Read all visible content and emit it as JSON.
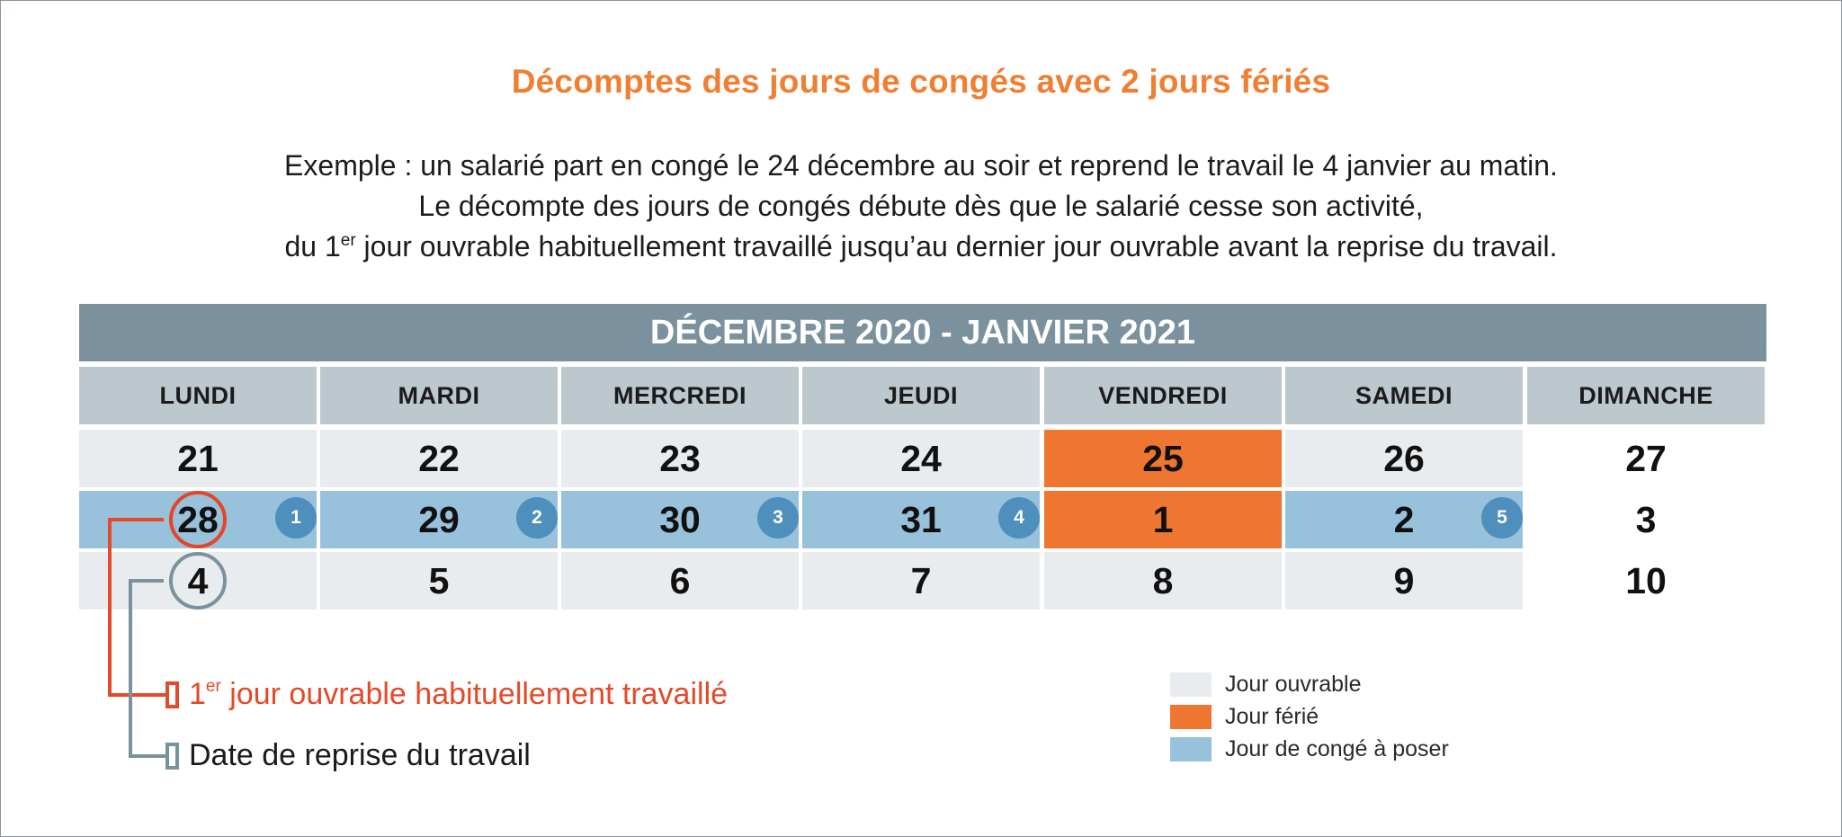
{
  "title": "Décomptes des jours de congés avec 2 jours fériés",
  "intro": {
    "line1": "Exemple : un salarié part en congé le 24 décembre au soir et reprend le travail le 4 janvier au matin.",
    "line2": "Le décompte des jours de congés débute dès que le salarié cesse son activité,",
    "line3_pre": "du 1",
    "line3_sup": "er",
    "line3_post": " jour ouvrable habituellement travaillé jusqu’au dernier jour ouvrable avant la reprise du travail."
  },
  "calendar": {
    "header": "DÉCEMBRE 2020 - JANVIER 2021",
    "days": [
      "LUNDI",
      "MARDI",
      "MERCREDI",
      "JEUDI",
      "VENDREDI",
      "SAMEDI",
      "DIMANCHE"
    ],
    "weeks": [
      [
        {
          "day": "21",
          "type": "ouvrable"
        },
        {
          "day": "22",
          "type": "ouvrable"
        },
        {
          "day": "23",
          "type": "ouvrable"
        },
        {
          "day": "24",
          "type": "ouvrable"
        },
        {
          "day": "25",
          "type": "ferie"
        },
        {
          "day": "26",
          "type": "ouvrable"
        },
        {
          "day": "27",
          "type": "plain"
        }
      ],
      [
        {
          "day": "28",
          "type": "conge",
          "badge": "1",
          "marker": "first"
        },
        {
          "day": "29",
          "type": "conge",
          "badge": "2"
        },
        {
          "day": "30",
          "type": "conge",
          "badge": "3"
        },
        {
          "day": "31",
          "type": "conge",
          "badge": "4"
        },
        {
          "day": "1",
          "type": "ferie"
        },
        {
          "day": "2",
          "type": "conge",
          "badge": "5"
        },
        {
          "day": "3",
          "type": "plain"
        }
      ],
      [
        {
          "day": "4",
          "type": "ouvrable",
          "marker": "return"
        },
        {
          "day": "5",
          "type": "ouvrable"
        },
        {
          "day": "6",
          "type": "ouvrable"
        },
        {
          "day": "7",
          "type": "ouvrable"
        },
        {
          "day": "8",
          "type": "ouvrable"
        },
        {
          "day": "9",
          "type": "ouvrable"
        },
        {
          "day": "10",
          "type": "plain"
        }
      ]
    ]
  },
  "notes": {
    "first_pre": "1",
    "first_sup": "er",
    "first_post": " jour ouvrable habituellement travaillé",
    "return": "Date de reprise du travail"
  },
  "legend": [
    {
      "label": "Jour ouvrable",
      "color": "#e9ecef"
    },
    {
      "label": "Jour férié",
      "color": "#ef7630"
    },
    {
      "label": "Jour de congé à poser",
      "color": "#98c1db"
    }
  ],
  "colors": {
    "accent_orange": "#ef7f33",
    "marker_red": "#e44a28",
    "header_grey": "#7b929e",
    "badge_blue": "#4e8fbd"
  }
}
